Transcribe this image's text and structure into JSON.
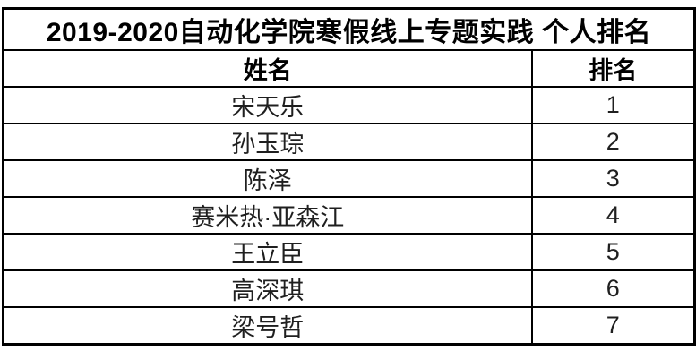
{
  "table": {
    "title": "2019-2020自动化学院寒假线上专题实践 个人排名",
    "columns": {
      "name": "姓名",
      "rank": "排名"
    },
    "rows": [
      {
        "name": "宋天乐",
        "rank": "1"
      },
      {
        "name": "孙玉琮",
        "rank": "2"
      },
      {
        "name": "陈泽",
        "rank": "3"
      },
      {
        "name": "赛米热·亚森江",
        "rank": "4"
      },
      {
        "name": "王立臣",
        "rank": "5"
      },
      {
        "name": "高深琪",
        "rank": "6"
      },
      {
        "name": "梁号哲",
        "rank": "7"
      }
    ]
  }
}
